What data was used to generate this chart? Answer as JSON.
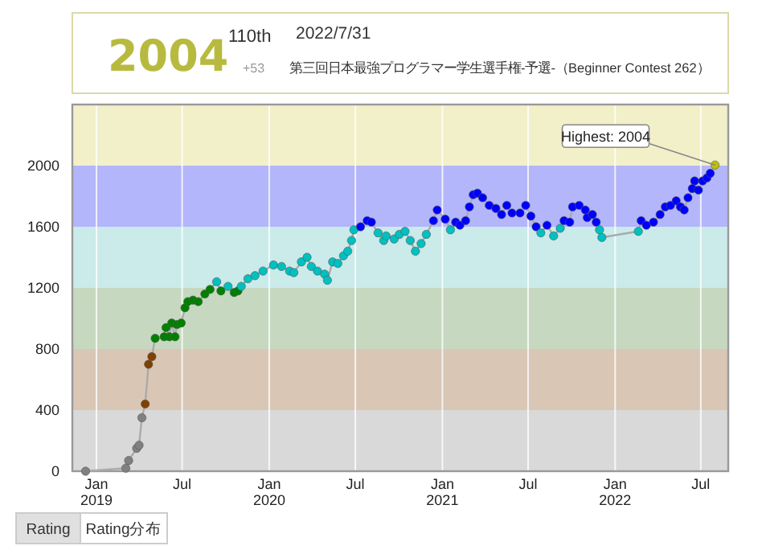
{
  "chart_data": {
    "type": "line",
    "title": "第三回日本最強プログラマー学生選手権-予選-（Beginner Contest 262）",
    "subtitle": "2022/7/31",
    "annotations": [
      "2004",
      "110th",
      "+53",
      {
        "text": "Highest: 2004",
        "x": "2022-07-31",
        "y": 2004
      },
      "Rating",
      "Rating分布"
    ],
    "xlim": [
      "2018-11-11",
      "2022-08-28"
    ],
    "ylim": [
      0,
      2400
    ],
    "xticks": [
      {
        "value": "2019-01-01",
        "label": "Jan\n2019"
      },
      {
        "value": "2019-07-01",
        "label": "Jul"
      },
      {
        "value": "2020-01-01",
        "label": "Jan\n2020"
      },
      {
        "value": "2020-07-01",
        "label": "Jul"
      },
      {
        "value": "2021-01-01",
        "label": "Jan\n2021"
      },
      {
        "value": "2021-07-01",
        "label": "Jul"
      },
      {
        "value": "2022-01-01",
        "label": "Jan\n2022"
      },
      {
        "value": "2022-07-01",
        "label": "Jul"
      }
    ],
    "yticks": [
      0,
      400,
      800,
      1200,
      1600,
      2000
    ],
    "grid": "x",
    "marker": "circle",
    "bands": [
      {
        "axis": "y",
        "from": 0,
        "to": 400,
        "color": "#d9d9d9"
      },
      {
        "axis": "y",
        "from": 400,
        "to": 800,
        "color": "#d9c6b5"
      },
      {
        "axis": "y",
        "from": 800,
        "to": 1200,
        "color": "#c6d9c0"
      },
      {
        "axis": "y",
        "from": 1200,
        "to": 1600,
        "color": "#cbeaea"
      },
      {
        "axis": "y",
        "from": 1600,
        "to": 2000,
        "color": "#b3b6fa"
      },
      {
        "axis": "y",
        "from": 2000,
        "to": 2400,
        "color": "#f1f0c9"
      }
    ],
    "series": [
      {
        "color": "#aaaaaa",
        "x": [
          "2018-12-09",
          "2019-03-04",
          "2019-03-10",
          "2019-03-27",
          "2019-04-01",
          "2019-04-07",
          "2019-04-14",
          "2019-04-21",
          "2019-04-28",
          "2019-05-05",
          "2019-05-24",
          "2019-05-28",
          "2019-06-04",
          "2019-06-09",
          "2019-06-16",
          "2019-06-20",
          "2019-06-29",
          "2019-07-07",
          "2019-07-13",
          "2019-07-24",
          "2019-08-04",
          "2019-08-18",
          "2019-08-29",
          "2019-09-12",
          "2019-09-21",
          "2019-10-06",
          "2019-10-19",
          "2019-10-27",
          "2019-11-03",
          "2019-11-17",
          "2019-12-02",
          "2019-12-19",
          "2020-01-10",
          "2020-01-27",
          "2020-02-13",
          "2020-02-22",
          "2020-03-09",
          "2020-03-21",
          "2020-03-30",
          "2020-04-12",
          "2020-04-27",
          "2020-05-03",
          "2020-05-14",
          "2020-05-25",
          "2020-06-06",
          "2020-06-15",
          "2020-06-23",
          "2020-06-28",
          "2020-07-12",
          "2020-07-26",
          "2020-08-04",
          "2020-08-18",
          "2020-08-30",
          "2020-09-04",
          "2020-09-21",
          "2020-10-02",
          "2020-10-14",
          "2020-10-25",
          "2020-11-05",
          "2020-11-17",
          "2020-11-28",
          "2020-12-13",
          "2020-12-21",
          "2021-01-07",
          "2021-01-18",
          "2021-01-29",
          "2021-02-07",
          "2021-02-19",
          "2021-02-27",
          "2021-03-07",
          "2021-03-16",
          "2021-03-27",
          "2021-04-10",
          "2021-04-24",
          "2021-05-06",
          "2021-05-17",
          "2021-05-28",
          "2021-06-14",
          "2021-06-26",
          "2021-07-07",
          "2021-07-18",
          "2021-07-28",
          "2021-08-10",
          "2021-08-24",
          "2021-09-07",
          "2021-09-15",
          "2021-09-27",
          "2021-10-03",
          "2021-10-17",
          "2021-10-30",
          "2021-11-03",
          "2021-11-14",
          "2021-11-22",
          "2021-11-29",
          "2021-12-04",
          "2022-02-19",
          "2022-02-25",
          "2022-03-08",
          "2022-03-23",
          "2022-04-06",
          "2022-04-17",
          "2022-04-28",
          "2022-05-10",
          "2022-05-19",
          "2022-05-27",
          "2022-06-04",
          "2022-06-13",
          "2022-06-18",
          "2022-06-26",
          "2022-07-05",
          "2022-07-14",
          "2022-07-21",
          "2022-07-31"
        ],
        "values": [
          0,
          20,
          70,
          150,
          170,
          350,
          440,
          700,
          750,
          870,
          880,
          940,
          880,
          970,
          880,
          960,
          970,
          1070,
          1110,
          1120,
          1110,
          1160,
          1190,
          1240,
          1180,
          1210,
          1170,
          1180,
          1210,
          1260,
          1280,
          1310,
          1350,
          1340,
          1310,
          1300,
          1370,
          1400,
          1340,
          1310,
          1290,
          1250,
          1370,
          1360,
          1410,
          1440,
          1510,
          1580,
          1600,
          1640,
          1630,
          1560,
          1510,
          1540,
          1520,
          1550,
          1570,
          1510,
          1440,
          1490,
          1550,
          1640,
          1710,
          1650,
          1580,
          1630,
          1610,
          1640,
          1730,
          1810,
          1820,
          1790,
          1740,
          1720,
          1680,
          1740,
          1690,
          1690,
          1740,
          1670,
          1600,
          1560,
          1610,
          1540,
          1590,
          1640,
          1630,
          1730,
          1740,
          1710,
          1660,
          1680,
          1630,
          1580,
          1530,
          1570,
          1640,
          1610,
          1630,
          1680,
          1730,
          1740,
          1770,
          1730,
          1710,
          1790,
          1850,
          1900,
          1840,
          1900,
          1920,
          1950,
          2004
        ],
        "colors": [
          "#808080",
          "#808080",
          "#808080",
          "#808080",
          "#808080",
          "#808080",
          "#804000",
          "#804000",
          "#804000",
          "#008000",
          "#008000",
          "#008000",
          "#008000",
          "#008000",
          "#008000",
          "#008000",
          "#008000",
          "#008000",
          "#008000",
          "#008000",
          "#008000",
          "#008000",
          "#008000",
          "#00c0c0",
          "#008000",
          "#00c0c0",
          "#008000",
          "#008000",
          "#00c0c0",
          "#00c0c0",
          "#00c0c0",
          "#00c0c0",
          "#00c0c0",
          "#00c0c0",
          "#00c0c0",
          "#00c0c0",
          "#00c0c0",
          "#00c0c0",
          "#00c0c0",
          "#00c0c0",
          "#00c0c0",
          "#00c0c0",
          "#00c0c0",
          "#00c0c0",
          "#00c0c0",
          "#00c0c0",
          "#00c0c0",
          "#00c0c0",
          "#0000ff",
          "#0000ff",
          "#0000ff",
          "#00c0c0",
          "#00c0c0",
          "#00c0c0",
          "#00c0c0",
          "#00c0c0",
          "#00c0c0",
          "#00c0c0",
          "#00c0c0",
          "#00c0c0",
          "#00c0c0",
          "#0000ff",
          "#0000ff",
          "#0000ff",
          "#00c0c0",
          "#0000ff",
          "#0000ff",
          "#0000ff",
          "#0000ff",
          "#0000ff",
          "#0000ff",
          "#0000ff",
          "#0000ff",
          "#0000ff",
          "#0000ff",
          "#0000ff",
          "#0000ff",
          "#0000ff",
          "#0000ff",
          "#0000ff",
          "#0000ff",
          "#00c0c0",
          "#0000ff",
          "#00c0c0",
          "#00c0c0",
          "#0000ff",
          "#0000ff",
          "#0000ff",
          "#0000ff",
          "#0000ff",
          "#0000ff",
          "#0000ff",
          "#0000ff",
          "#00c0c0",
          "#00c0c0",
          "#00c0c0",
          "#0000ff",
          "#0000ff",
          "#0000ff",
          "#0000ff",
          "#0000ff",
          "#0000ff",
          "#0000ff",
          "#0000ff",
          "#0000ff",
          "#0000ff",
          "#0000ff",
          "#0000ff",
          "#0000ff",
          "#0000ff",
          "#0000ff",
          "#0000ff",
          "#c0c000"
        ]
      }
    ]
  }
}
